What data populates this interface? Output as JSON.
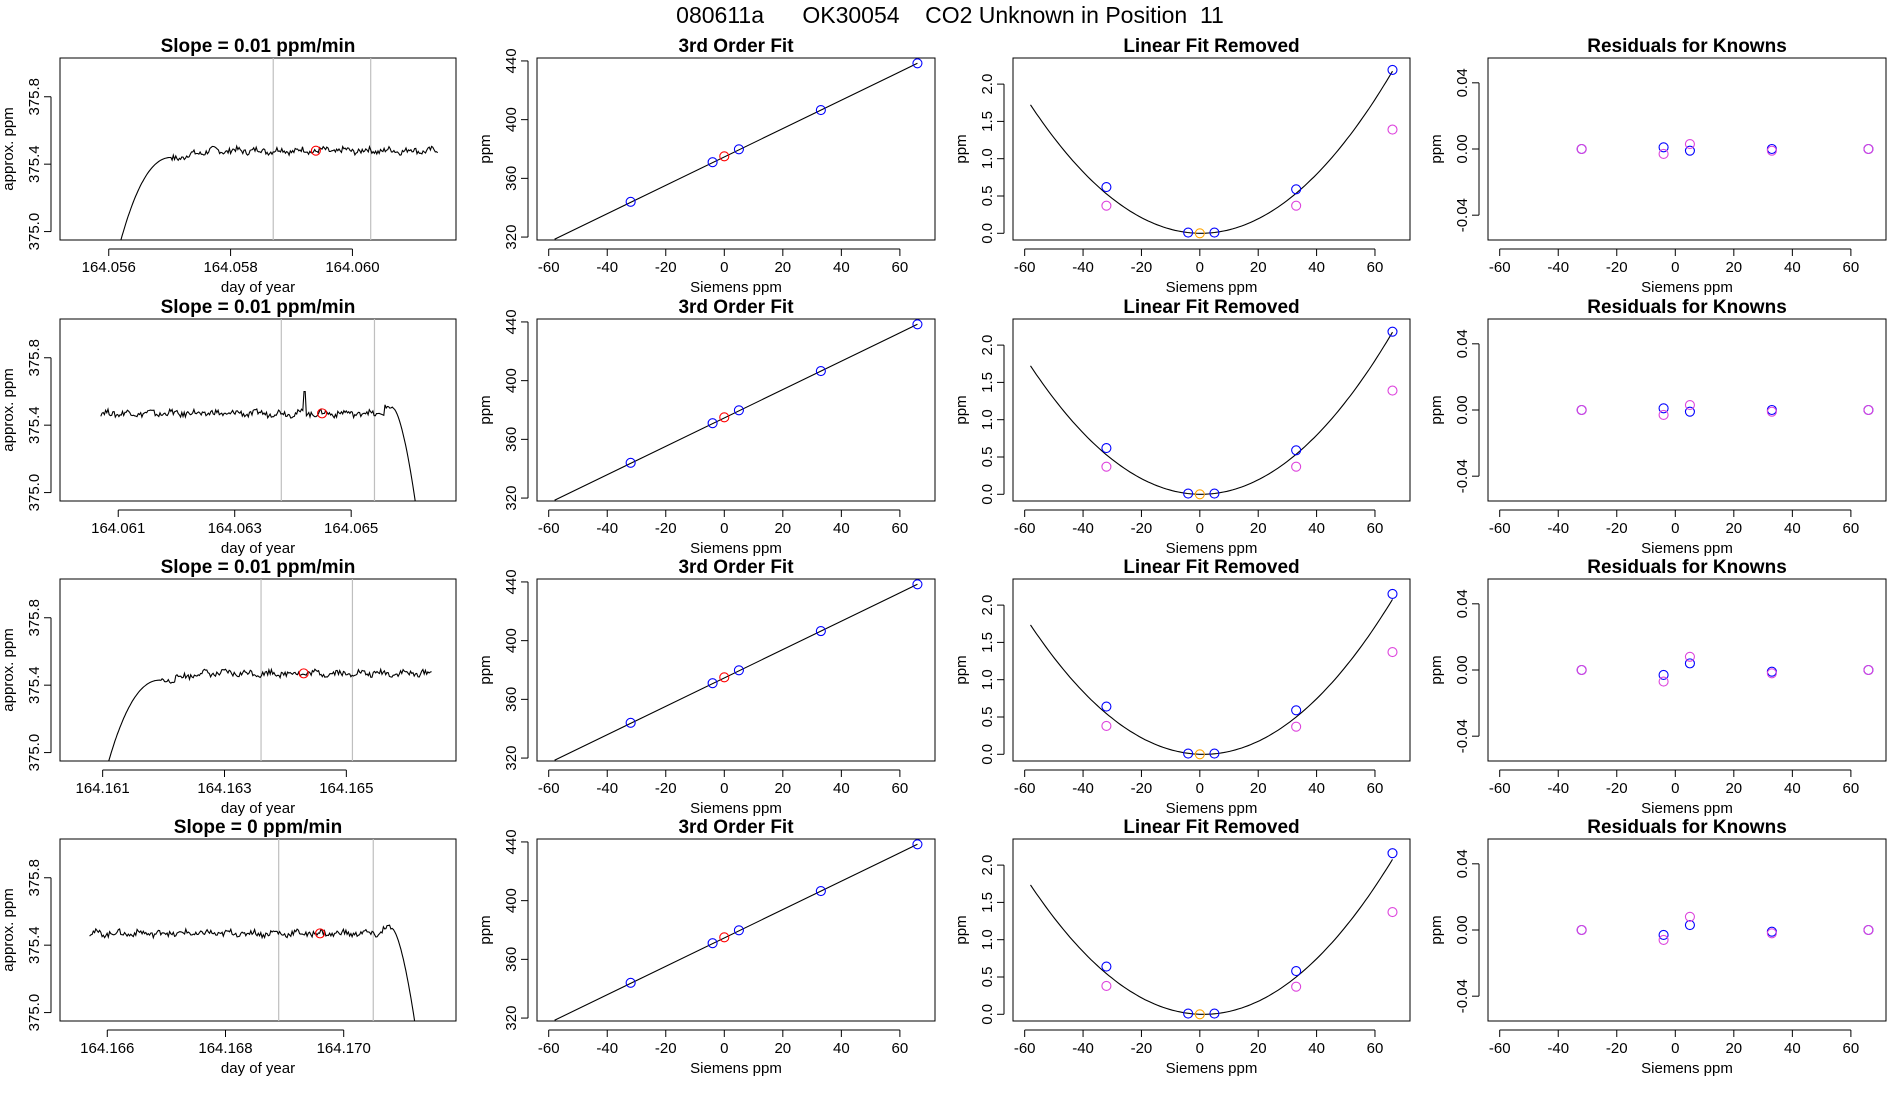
{
  "title": "080611a      OK30054    CO2 Unknown in Position  11",
  "colors": {
    "line": "#000000",
    "vline": "#bfbfbf",
    "blue": "#0000ff",
    "red": "#ff0000",
    "magenta": "#dd44dd",
    "orange": "#ffa500",
    "purple": "#8800ff"
  },
  "chart_data": [
    {
      "type": "line",
      "row": 0,
      "title": "Slope =  0.01  ppm/min",
      "xlabel": "day of year",
      "ylabel": "approx. ppm",
      "xlim": [
        164.0552,
        164.0617
      ],
      "ylim": [
        374.95,
        376.03
      ],
      "xticks": [
        164.056,
        164.058,
        164.06
      ],
      "xtick_labels": [
        "164.056",
        "164.058",
        "164.060"
      ],
      "yticks": [
        375.0,
        375.4,
        375.8
      ],
      "ytick_labels": [
        "375.0",
        "375.4",
        "375.8"
      ],
      "vlines": [
        164.0587,
        164.0603
      ],
      "trace": {
        "mode": "rise",
        "x_start": 164.0562,
        "x_end": 164.0614,
        "plateau": 375.48,
        "start_y": 374.95
      },
      "marker": {
        "x": 164.0594,
        "y": 375.48,
        "color": "red"
      }
    },
    {
      "type": "line",
      "row": 1,
      "title": "Slope =  0.01  ppm/min",
      "xlabel": "day of year",
      "ylabel": "approx. ppm",
      "xlim": [
        164.06,
        164.0668
      ],
      "ylim": [
        374.95,
        376.03
      ],
      "xticks": [
        164.061,
        164.063,
        164.065
      ],
      "xtick_labels": [
        "164.061",
        "164.063",
        "164.065"
      ],
      "yticks": [
        375.0,
        375.4,
        375.8
      ],
      "ytick_labels": [
        "375.0",
        "375.4",
        "375.8"
      ],
      "vlines": [
        164.0638,
        164.0654
      ],
      "trace": {
        "mode": "fall",
        "x_start": 164.0607,
        "x_end": 164.0661,
        "plateau": 375.47,
        "end_y": 374.95,
        "spike_x": 164.0642,
        "spike_y": 375.6
      },
      "marker": {
        "x": 164.0645,
        "y": 375.47,
        "color": "red"
      }
    },
    {
      "type": "line",
      "row": 2,
      "title": "Slope =  0.01  ppm/min",
      "xlabel": "day of year",
      "ylabel": "approx. ppm",
      "xlim": [
        164.1603,
        164.1668
      ],
      "ylim": [
        374.95,
        376.03
      ],
      "xticks": [
        164.161,
        164.163,
        164.165
      ],
      "xtick_labels": [
        "164.161",
        "164.163",
        "164.165"
      ],
      "yticks": [
        375.0,
        375.4,
        375.8
      ],
      "ytick_labels": [
        "375.0",
        "375.4",
        "375.8"
      ],
      "vlines": [
        164.1636,
        164.1651
      ],
      "trace": {
        "mode": "rise",
        "x_start": 164.1611,
        "x_end": 164.1664,
        "plateau": 375.47,
        "start_y": 374.95
      },
      "marker": {
        "x": 164.1643,
        "y": 375.47,
        "color": "red"
      }
    },
    {
      "type": "line",
      "row": 3,
      "title": "Slope =  0  ppm/min",
      "xlabel": "day of year",
      "ylabel": "approx. ppm",
      "xlim": [
        164.1652,
        164.1719
      ],
      "ylim": [
        374.95,
        376.03
      ],
      "xticks": [
        164.166,
        164.168,
        164.17
      ],
      "xtick_labels": [
        "164.166",
        "164.168",
        "164.170"
      ],
      "yticks": [
        375.0,
        375.4,
        375.8
      ],
      "ytick_labels": [
        "375.0",
        "375.4",
        "375.8"
      ],
      "vlines": [
        164.1689,
        164.1705
      ],
      "trace": {
        "mode": "fall",
        "x_start": 164.1657,
        "x_end": 164.1712,
        "plateau": 375.47,
        "end_y": 374.95
      },
      "marker": {
        "x": 164.1696,
        "y": 375.47,
        "color": "red"
      }
    },
    {
      "type": "scatter",
      "panel": "fit",
      "title": "3rd Order Fit",
      "xlabel": "Siemens ppm",
      "ylabel": "ppm",
      "xlim": [
        -64,
        72
      ],
      "ylim": [
        318,
        442
      ],
      "xticks": [
        -60,
        -40,
        -20,
        0,
        20,
        40,
        60
      ],
      "xtick_labels": [
        "-60",
        "-40",
        "-20",
        "0",
        "20",
        "40",
        "60"
      ],
      "yticks": [
        320,
        360,
        400,
        440
      ],
      "ytick_labels": [
        "320",
        "360",
        "400",
        "440"
      ],
      "curve": {
        "kind": "line",
        "x0": -58,
        "y0": 318.5,
        "x1": 66,
        "y1": 438.4
      },
      "points": [
        {
          "x": -32,
          "y": 344.0,
          "color": "blue"
        },
        {
          "x": -4,
          "y": 371.0,
          "color": "blue"
        },
        {
          "x": 5,
          "y": 379.8,
          "color": "blue"
        },
        {
          "x": 33,
          "y": 406.5,
          "color": "blue"
        },
        {
          "x": 66,
          "y": 438.4,
          "color": "blue"
        },
        {
          "x": 0,
          "y": 375.0,
          "color": "red"
        }
      ]
    },
    {
      "type": "scatter",
      "panel": "linfit",
      "row": 0,
      "title": "Linear Fit Removed",
      "xlabel": "Siemens ppm",
      "ylabel": "ppm",
      "xlim": [
        -64,
        72
      ],
      "ylim": [
        -0.09,
        2.35
      ],
      "xticks": [
        -60,
        -40,
        -20,
        0,
        20,
        40,
        60
      ],
      "xtick_labels": [
        "-60",
        "-40",
        "-20",
        "0",
        "20",
        "40",
        "60"
      ],
      "yticks": [
        0.0,
        0.5,
        1.0,
        1.5,
        2.0
      ],
      "ytick_labels": [
        "0.0",
        "0.5",
        "1.0",
        "1.5",
        "2.0"
      ],
      "curve": {
        "kind": "quad",
        "a": 0.000505,
        "b": -0.0004,
        "c": 0.0,
        "xmin": -58,
        "xmax": 66
      },
      "points": [
        {
          "x": -32,
          "y": 0.62,
          "color": "blue"
        },
        {
          "x": -4,
          "y": 0.01,
          "color": "blue"
        },
        {
          "x": 5,
          "y": 0.01,
          "color": "blue"
        },
        {
          "x": 33,
          "y": 0.59,
          "color": "blue"
        },
        {
          "x": 66,
          "y": 2.19,
          "color": "blue"
        },
        {
          "x": -32,
          "y": 0.37,
          "color": "magenta"
        },
        {
          "x": 33,
          "y": 0.37,
          "color": "magenta"
        },
        {
          "x": 66,
          "y": 1.39,
          "color": "magenta"
        },
        {
          "x": 0,
          "y": 0.0,
          "color": "orange"
        }
      ]
    },
    {
      "type": "scatter",
      "panel": "linfit",
      "row": 1,
      "title": "Linear Fit Removed",
      "xlabel": "Siemens ppm",
      "ylabel": "ppm",
      "xlim": [
        -64,
        72
      ],
      "ylim": [
        -0.09,
        2.35
      ],
      "xticks": [
        -60,
        -40,
        -20,
        0,
        20,
        40,
        60
      ],
      "xtick_labels": [
        "-60",
        "-40",
        "-20",
        "0",
        "20",
        "40",
        "60"
      ],
      "yticks": [
        0.0,
        0.5,
        1.0,
        1.5,
        2.0
      ],
      "ytick_labels": [
        "0.0",
        "0.5",
        "1.0",
        "1.5",
        "2.0"
      ],
      "curve": {
        "kind": "quad",
        "a": 0.000505,
        "b": -0.0004,
        "c": 0.0,
        "xmin": -58,
        "xmax": 66
      },
      "points": [
        {
          "x": -32,
          "y": 0.62,
          "color": "blue"
        },
        {
          "x": -4,
          "y": 0.01,
          "color": "blue"
        },
        {
          "x": 5,
          "y": 0.01,
          "color": "blue"
        },
        {
          "x": 33,
          "y": 0.59,
          "color": "blue"
        },
        {
          "x": 66,
          "y": 2.18,
          "color": "blue"
        },
        {
          "x": -32,
          "y": 0.37,
          "color": "magenta"
        },
        {
          "x": 33,
          "y": 0.37,
          "color": "magenta"
        },
        {
          "x": 66,
          "y": 1.39,
          "color": "magenta"
        },
        {
          "x": 0,
          "y": 0.0,
          "color": "orange"
        }
      ]
    },
    {
      "type": "scatter",
      "panel": "linfit",
      "row": 2,
      "title": "Linear Fit Removed",
      "xlabel": "Siemens ppm",
      "ylabel": "ppm",
      "xlim": [
        -64,
        72
      ],
      "ylim": [
        -0.09,
        2.35
      ],
      "xticks": [
        -60,
        -40,
        -20,
        0,
        20,
        40,
        60
      ],
      "xtick_labels": [
        "-60",
        "-40",
        "-20",
        "0",
        "20",
        "40",
        "60"
      ],
      "yticks": [
        0.0,
        0.5,
        1.0,
        1.5,
        2.0
      ],
      "ytick_labels": [
        "0.0",
        "0.5",
        "1.0",
        "1.5",
        "2.0"
      ],
      "curve": {
        "kind": "quad",
        "a": 0.000495,
        "b": -0.0012,
        "c": 0.0,
        "xmin": -58,
        "xmax": 66
      },
      "points": [
        {
          "x": -32,
          "y": 0.64,
          "color": "blue"
        },
        {
          "x": -4,
          "y": 0.01,
          "color": "blue"
        },
        {
          "x": 5,
          "y": 0.01,
          "color": "blue"
        },
        {
          "x": 33,
          "y": 0.59,
          "color": "blue"
        },
        {
          "x": 66,
          "y": 2.15,
          "color": "blue"
        },
        {
          "x": -32,
          "y": 0.38,
          "color": "magenta"
        },
        {
          "x": 33,
          "y": 0.37,
          "color": "magenta"
        },
        {
          "x": 66,
          "y": 1.37,
          "color": "magenta"
        },
        {
          "x": 0,
          "y": 0.0,
          "color": "orange"
        }
      ]
    },
    {
      "type": "scatter",
      "panel": "linfit",
      "row": 3,
      "title": "Linear Fit Removed",
      "xlabel": "Siemens ppm",
      "ylabel": "ppm",
      "xlim": [
        -64,
        72
      ],
      "ylim": [
        -0.09,
        2.35
      ],
      "xticks": [
        -60,
        -40,
        -20,
        0,
        20,
        40,
        60
      ],
      "xtick_labels": [
        "-60",
        "-40",
        "-20",
        "0",
        "20",
        "40",
        "60"
      ],
      "yticks": [
        0.0,
        0.5,
        1.0,
        1.5,
        2.0
      ],
      "ytick_labels": [
        "0.0",
        "0.5",
        "1.0",
        "1.5",
        "2.0"
      ],
      "curve": {
        "kind": "quad",
        "a": 0.000495,
        "b": -0.0012,
        "c": 0.0,
        "xmin": -58,
        "xmax": 66
      },
      "points": [
        {
          "x": -32,
          "y": 0.64,
          "color": "blue"
        },
        {
          "x": -4,
          "y": 0.01,
          "color": "blue"
        },
        {
          "x": 5,
          "y": 0.01,
          "color": "blue"
        },
        {
          "x": 33,
          "y": 0.58,
          "color": "blue"
        },
        {
          "x": 66,
          "y": 2.16,
          "color": "blue"
        },
        {
          "x": -32,
          "y": 0.38,
          "color": "magenta"
        },
        {
          "x": 33,
          "y": 0.37,
          "color": "magenta"
        },
        {
          "x": 66,
          "y": 1.37,
          "color": "magenta"
        },
        {
          "x": 0,
          "y": 0.0,
          "color": "orange"
        }
      ]
    },
    {
      "type": "scatter",
      "panel": "resid",
      "row": 0,
      "title": "Residuals for Knowns",
      "xlabel": "Siemens ppm",
      "ylabel": "ppm",
      "xlim": [
        -64,
        72
      ],
      "ylim": [
        -0.055,
        0.055
      ],
      "xticks": [
        -60,
        -40,
        -20,
        0,
        20,
        40,
        60
      ],
      "xtick_labels": [
        "-60",
        "-40",
        "-20",
        "0",
        "20",
        "40",
        "60"
      ],
      "yticks": [
        -0.04,
        0.0,
        0.04
      ],
      "ytick_labels": [
        "-0.04",
        "0.00",
        "0.04"
      ],
      "points": [
        {
          "x": -32,
          "y": 0.0,
          "color": "blue"
        },
        {
          "x": -4,
          "y": 0.001,
          "color": "blue"
        },
        {
          "x": 5,
          "y": -0.001,
          "color": "blue"
        },
        {
          "x": 33,
          "y": 0.0,
          "color": "blue"
        },
        {
          "x": 66,
          "y": 0.0,
          "color": "blue"
        },
        {
          "x": -32,
          "y": 0.0,
          "color": "magenta"
        },
        {
          "x": -4,
          "y": -0.003,
          "color": "magenta"
        },
        {
          "x": 5,
          "y": 0.003,
          "color": "magenta"
        },
        {
          "x": 33,
          "y": -0.001,
          "color": "magenta"
        },
        {
          "x": 66,
          "y": 0.0,
          "color": "magenta"
        }
      ]
    },
    {
      "type": "scatter",
      "panel": "resid",
      "row": 1,
      "title": "Residuals for Knowns",
      "xlabel": "Siemens ppm",
      "ylabel": "ppm",
      "xlim": [
        -64,
        72
      ],
      "ylim": [
        -0.055,
        0.055
      ],
      "xticks": [
        -60,
        -40,
        -20,
        0,
        20,
        40,
        60
      ],
      "xtick_labels": [
        "-60",
        "-40",
        "-20",
        "0",
        "20",
        "40",
        "60"
      ],
      "yticks": [
        -0.04,
        0.0,
        0.04
      ],
      "ytick_labels": [
        "-0.04",
        "0.00",
        "0.04"
      ],
      "points": [
        {
          "x": -32,
          "y": 0.0,
          "color": "blue"
        },
        {
          "x": -4,
          "y": 0.001,
          "color": "blue"
        },
        {
          "x": 5,
          "y": -0.001,
          "color": "blue"
        },
        {
          "x": 33,
          "y": 0.0,
          "color": "blue"
        },
        {
          "x": 66,
          "y": 0.0,
          "color": "blue"
        },
        {
          "x": -32,
          "y": 0.0,
          "color": "magenta"
        },
        {
          "x": -4,
          "y": -0.003,
          "color": "magenta"
        },
        {
          "x": 5,
          "y": 0.003,
          "color": "magenta"
        },
        {
          "x": 33,
          "y": -0.001,
          "color": "magenta"
        },
        {
          "x": 66,
          "y": 0.0,
          "color": "magenta"
        }
      ]
    },
    {
      "type": "scatter",
      "panel": "resid",
      "row": 2,
      "title": "Residuals for Knowns",
      "xlabel": "Siemens ppm",
      "ylabel": "ppm",
      "xlim": [
        -64,
        72
      ],
      "ylim": [
        -0.055,
        0.055
      ],
      "xticks": [
        -60,
        -40,
        -20,
        0,
        20,
        40,
        60
      ],
      "xtick_labels": [
        "-60",
        "-40",
        "-20",
        "0",
        "20",
        "40",
        "60"
      ],
      "yticks": [
        -0.04,
        0.0,
        0.04
      ],
      "ytick_labels": [
        "-0.04",
        "0.00",
        "0.04"
      ],
      "points": [
        {
          "x": -32,
          "y": 0.0,
          "color": "blue"
        },
        {
          "x": -4,
          "y": -0.003,
          "color": "blue"
        },
        {
          "x": 5,
          "y": 0.004,
          "color": "blue"
        },
        {
          "x": 33,
          "y": -0.001,
          "color": "blue"
        },
        {
          "x": 66,
          "y": 0.0,
          "color": "blue"
        },
        {
          "x": -32,
          "y": 0.0,
          "color": "magenta"
        },
        {
          "x": -4,
          "y": -0.007,
          "color": "magenta"
        },
        {
          "x": 5,
          "y": 0.008,
          "color": "magenta"
        },
        {
          "x": 33,
          "y": -0.002,
          "color": "magenta"
        },
        {
          "x": 66,
          "y": 0.0,
          "color": "magenta"
        }
      ]
    },
    {
      "type": "scatter",
      "panel": "resid",
      "row": 3,
      "title": "Residuals for Knowns",
      "xlabel": "Siemens ppm",
      "ylabel": "ppm",
      "xlim": [
        -64,
        72
      ],
      "ylim": [
        -0.055,
        0.055
      ],
      "xticks": [
        -60,
        -40,
        -20,
        0,
        20,
        40,
        60
      ],
      "xtick_labels": [
        "-60",
        "-40",
        "-20",
        "0",
        "20",
        "40",
        "60"
      ],
      "yticks": [
        -0.04,
        0.0,
        0.04
      ],
      "ytick_labels": [
        "-0.04",
        "0.00",
        "0.04"
      ],
      "points": [
        {
          "x": -32,
          "y": 0.0,
          "color": "blue"
        },
        {
          "x": -4,
          "y": -0.003,
          "color": "blue"
        },
        {
          "x": 5,
          "y": 0.003,
          "color": "blue"
        },
        {
          "x": 33,
          "y": -0.001,
          "color": "blue"
        },
        {
          "x": 66,
          "y": 0.0,
          "color": "blue"
        },
        {
          "x": -32,
          "y": 0.0,
          "color": "magenta"
        },
        {
          "x": -4,
          "y": -0.006,
          "color": "magenta"
        },
        {
          "x": 5,
          "y": 0.008,
          "color": "magenta"
        },
        {
          "x": 33,
          "y": -0.002,
          "color": "magenta"
        },
        {
          "x": 66,
          "y": 0.0,
          "color": "magenta"
        }
      ]
    }
  ]
}
